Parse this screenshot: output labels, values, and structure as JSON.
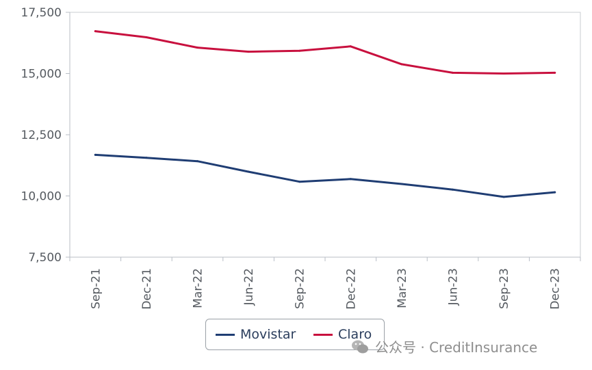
{
  "chart_data": {
    "type": "line",
    "categories": [
      "Sep-21",
      "Dec-21",
      "Mar-22",
      "Jun-22",
      "Sep-22",
      "Dec-22",
      "Mar-23",
      "Jun-23",
      "Sep-23",
      "Dec-23"
    ],
    "series": [
      {
        "name": "Movistar",
        "color": "#1f3d73",
        "values": [
          11680,
          11560,
          11420,
          10990,
          10580,
          10690,
          10490,
          10260,
          9960,
          10150
        ]
      },
      {
        "name": "Claro",
        "color": "#c8103e",
        "values": [
          16730,
          16480,
          16060,
          15890,
          15930,
          16110,
          15380,
          15030,
          15000,
          15030
        ]
      }
    ],
    "yticks": [
      "7,500",
      "10,000",
      "12,500",
      "15,000",
      "17,500"
    ],
    "ylim": [
      7500,
      17500
    ],
    "legend_position": "bottom",
    "grid": false
  },
  "legend": {
    "movistar": "Movistar",
    "claro": "Claro"
  },
  "watermark": {
    "text": "公众号 · CreditInsurance",
    "icon": "wechat-icon"
  }
}
